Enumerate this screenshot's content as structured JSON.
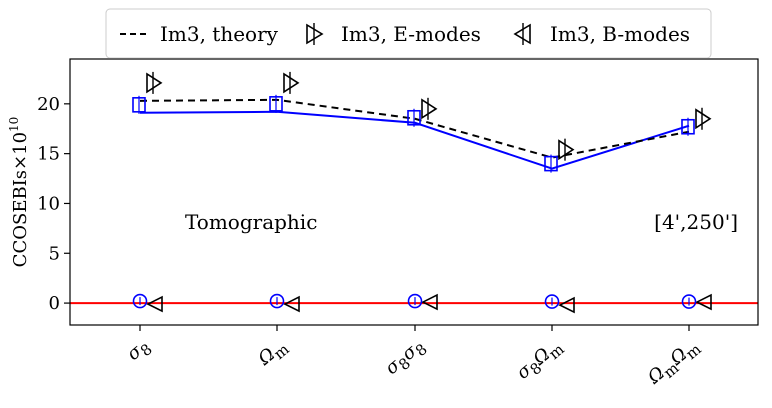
{
  "chart_data": {
    "type": "line",
    "categories": [
      "σ8",
      "Ωm",
      "σ8σ8",
      "σ8Ωm",
      "ΩmΩm"
    ],
    "category_labels": [
      {
        "base": "σ",
        "sub": "8"
      },
      {
        "base": "Ω",
        "sub": "m"
      },
      {
        "base": "σ",
        "sub": "8",
        "base2": "σ",
        "sub2": "8"
      },
      {
        "base": "σ",
        "sub": "8",
        "base2": "Ω",
        "sub2": "m"
      },
      {
        "base": "Ω",
        "sub": "m",
        "base2": "Ω",
        "sub2": "m"
      }
    ],
    "ylabel": "CCOSEBIs×10",
    "ylabel_exponent": "10",
    "ylim": [
      -2.2,
      24.5
    ],
    "yticks": [
      0,
      5,
      10,
      15,
      20
    ],
    "ytick_labels": [
      "0",
      "5",
      "10",
      "15",
      "20"
    ],
    "annotations": {
      "left": "Tomographic",
      "right": "[4',250']"
    },
    "legend": {
      "position": "top",
      "entries": [
        {
          "label": "Im3, theory",
          "style": "dashed-line",
          "color": "#000000"
        },
        {
          "label": "Im3, E-modes",
          "style": "right-triangle",
          "color": "#000000"
        },
        {
          "label": "Im3, B-modes",
          "style": "left-triangle",
          "color": "#000000"
        }
      ]
    },
    "series": [
      {
        "style": "solid-line-square",
        "color": "#0000ff",
        "values": [
          19.1,
          19.2,
          18.1,
          13.5,
          17.8
        ]
      },
      {
        "style": "square-marker",
        "color": "#0000ff",
        "values": [
          19.9,
          20.0,
          18.6,
          14.0,
          17.7
        ]
      },
      {
        "name": "Im3, theory",
        "style": "dashed-line",
        "color": "#000000",
        "values": [
          20.3,
          20.4,
          18.5,
          14.6,
          17.2
        ]
      },
      {
        "name": "Im3, E-modes",
        "style": "right-triangle",
        "color": "#000000",
        "values": [
          22.1,
          22.1,
          19.5,
          15.4,
          18.5
        ]
      },
      {
        "name": "Im3, B-modes",
        "style": "left-triangle",
        "color": "#000000",
        "values": [
          -0.1,
          -0.1,
          0.1,
          -0.2,
          0.1
        ]
      },
      {
        "style": "circle-marker",
        "color": "#0000ff",
        "values": [
          0.2,
          0.2,
          0.2,
          0.15,
          0.15
        ]
      }
    ],
    "reference_line": {
      "y": 0,
      "color": "#ff0000"
    },
    "grid": false
  }
}
